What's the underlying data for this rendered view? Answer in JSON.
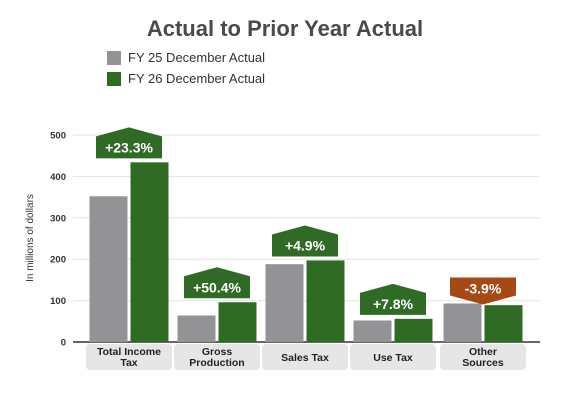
{
  "chart_data": {
    "type": "bar",
    "title": "Actual to Prior Year Actual",
    "ylabel": "In millions of dollars",
    "ylim": [
      0,
      500
    ],
    "yticks": [
      0,
      100,
      200,
      300,
      400,
      500
    ],
    "categories": [
      [
        "Total Income",
        "Tax"
      ],
      [
        "Gross",
        "Production"
      ],
      [
        "Sales Tax"
      ],
      [
        "Use Tax"
      ],
      [
        "Other",
        "Sources"
      ]
    ],
    "series": [
      {
        "name": "FY 25 December Actual",
        "color": "#939396",
        "values": [
          352,
          64,
          188,
          52,
          93
        ]
      },
      {
        "name": "FY 26 December Actual",
        "color": "#2f6b24",
        "values": [
          434,
          96,
          197,
          56,
          89
        ]
      }
    ],
    "annotations": [
      "+23.3%",
      "+50.4%",
      "+4.9%",
      "+7.8%",
      "-3.9%"
    ],
    "annotation_colors": [
      "#2f6b24",
      "#2f6b24",
      "#2f6b24",
      "#2f6b24",
      "#a54a14"
    ],
    "grid": true,
    "legend": "top-left"
  }
}
